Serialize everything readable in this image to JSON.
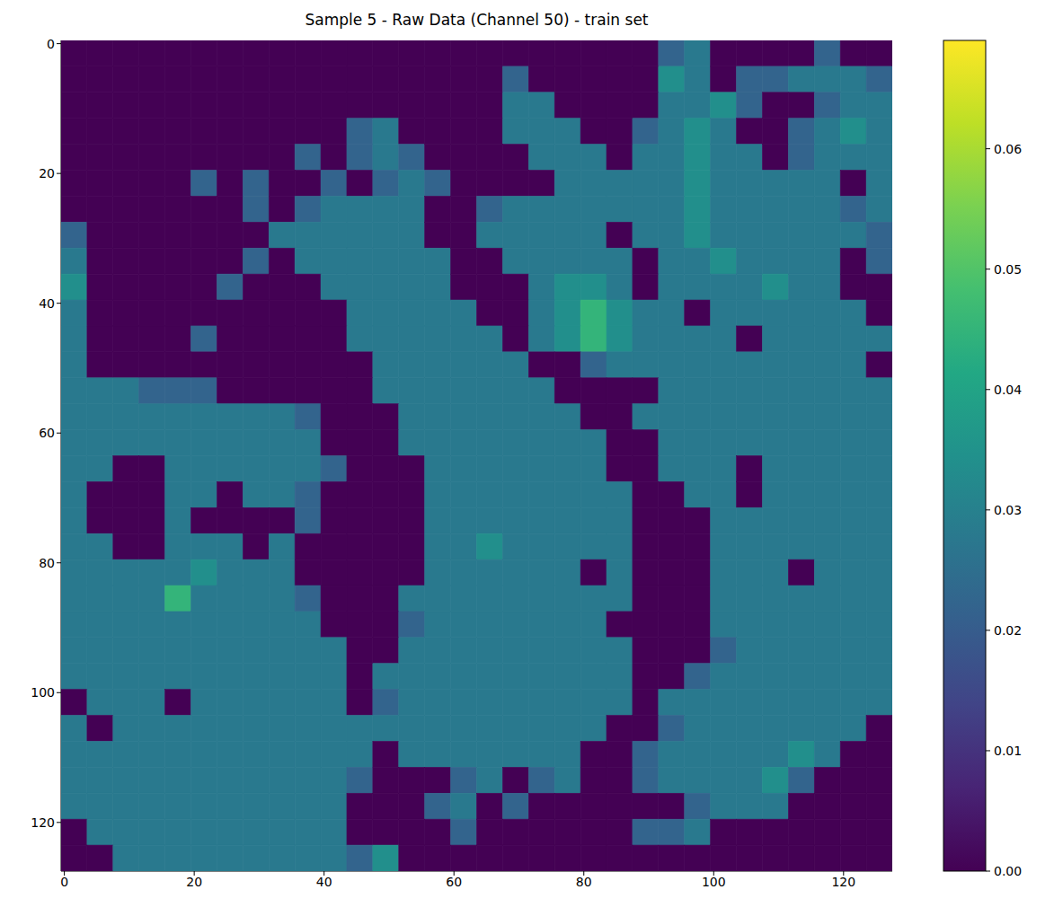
{
  "chart_data": {
    "type": "heatmap",
    "title": "Sample 5 - Raw Data (Channel 50) - train set",
    "xlim": [
      -0.5,
      127.5
    ],
    "ylim": [
      127.5,
      -0.5
    ],
    "xticks": [
      0,
      20,
      40,
      60,
      80,
      100,
      120
    ],
    "yticks": [
      0,
      20,
      40,
      60,
      80,
      100,
      120
    ],
    "cell_x": [
      0,
      4,
      8,
      12,
      16,
      20,
      24,
      28,
      32,
      36,
      40,
      44,
      48,
      52,
      56,
      60,
      64,
      68,
      72,
      76,
      80,
      84,
      88,
      92,
      96,
      100,
      104,
      108,
      112,
      116,
      120,
      124
    ],
    "cell_y": [
      0,
      4,
      8,
      12,
      16,
      20,
      24,
      28,
      32,
      36,
      40,
      44,
      48,
      52,
      56,
      60,
      64,
      68,
      72,
      76,
      80,
      84,
      88,
      92,
      96,
      100,
      104,
      108,
      112,
      116,
      120,
      124
    ],
    "cell_size": 4,
    "cells": [
      [
        0,
        0,
        0,
        0,
        0,
        0,
        0,
        0,
        0,
        0,
        0,
        0,
        0,
        0,
        0,
        0,
        0,
        0,
        0,
        0,
        0,
        0,
        0,
        0.022,
        0.028,
        0,
        0,
        0,
        0,
        0.022,
        0,
        0
      ],
      [
        0,
        0,
        0,
        0,
        0,
        0,
        0,
        0,
        0,
        0,
        0,
        0,
        0,
        0,
        0,
        0,
        0,
        0.022,
        0,
        0,
        0,
        0,
        0,
        0.034,
        0.028,
        0,
        0.022,
        0.022,
        0.028,
        0.028,
        0.028,
        0.022
      ],
      [
        0,
        0,
        0,
        0,
        0,
        0,
        0,
        0,
        0,
        0,
        0,
        0,
        0,
        0,
        0,
        0,
        0,
        0.028,
        0.028,
        0,
        0,
        0,
        0,
        0.028,
        0.028,
        0.034,
        0.022,
        0,
        0,
        0.022,
        0.028,
        0.028
      ],
      [
        0,
        0,
        0,
        0,
        0,
        0,
        0,
        0,
        0,
        0,
        0,
        0.022,
        0.028,
        0,
        0,
        0,
        0,
        0.028,
        0.028,
        0.028,
        0,
        0,
        0.022,
        0.028,
        0.034,
        0.028,
        0,
        0,
        0.022,
        0.028,
        0.034,
        0.028
      ],
      [
        0,
        0,
        0,
        0,
        0,
        0,
        0,
        0,
        0,
        0.022,
        0,
        0.022,
        0.028,
        0.022,
        0,
        0,
        0,
        0,
        0.028,
        0.028,
        0.028,
        0,
        0.028,
        0.028,
        0.034,
        0.028,
        0.028,
        0,
        0.022,
        0.028,
        0.028,
        0.028
      ],
      [
        0,
        0,
        0,
        0,
        0,
        0.022,
        0,
        0.022,
        0,
        0,
        0.022,
        0,
        0.022,
        0.028,
        0.022,
        0,
        0,
        0,
        0,
        0.028,
        0.028,
        0.028,
        0.028,
        0.028,
        0.034,
        0.028,
        0.028,
        0.028,
        0.028,
        0.028,
        0,
        0.028
      ],
      [
        0,
        0,
        0,
        0,
        0,
        0,
        0,
        0.022,
        0,
        0.022,
        0.028,
        0.028,
        0.028,
        0.028,
        0,
        0,
        0.022,
        0.028,
        0.028,
        0.028,
        0.028,
        0.028,
        0.028,
        0.028,
        0.034,
        0.028,
        0.028,
        0.028,
        0.028,
        0.028,
        0.022,
        0.028
      ],
      [
        0.022,
        0,
        0,
        0,
        0,
        0,
        0,
        0,
        0.028,
        0.028,
        0.028,
        0.028,
        0.028,
        0.028,
        0,
        0,
        0.028,
        0.028,
        0.028,
        0.028,
        0.028,
        0,
        0.028,
        0.028,
        0.034,
        0.028,
        0.028,
        0.028,
        0.028,
        0.028,
        0.028,
        0.022
      ],
      [
        0.028,
        0,
        0,
        0,
        0,
        0,
        0,
        0.022,
        0,
        0.028,
        0.028,
        0.028,
        0.028,
        0.028,
        0.028,
        0,
        0,
        0.028,
        0.028,
        0.028,
        0.028,
        0.028,
        0,
        0.028,
        0.028,
        0.034,
        0.028,
        0.028,
        0.028,
        0.028,
        0,
        0.022
      ],
      [
        0.034,
        0,
        0,
        0,
        0,
        0,
        0.022,
        0,
        0,
        0,
        0.028,
        0.028,
        0.028,
        0.028,
        0.028,
        0,
        0,
        0,
        0.028,
        0.034,
        0.034,
        0.028,
        0,
        0.028,
        0.028,
        0.028,
        0.028,
        0.034,
        0.028,
        0.028,
        0,
        0
      ],
      [
        0.028,
        0,
        0,
        0,
        0,
        0,
        0,
        0,
        0,
        0,
        0,
        0.028,
        0.028,
        0.028,
        0.028,
        0.028,
        0,
        0,
        0.028,
        0.034,
        0.045,
        0.034,
        0.028,
        0.028,
        0,
        0.028,
        0.028,
        0.028,
        0.028,
        0.028,
        0.028,
        0
      ],
      [
        0.028,
        0,
        0,
        0,
        0,
        0.022,
        0,
        0,
        0,
        0,
        0,
        0.028,
        0.028,
        0.028,
        0.028,
        0.028,
        0.028,
        0,
        0.028,
        0.034,
        0.045,
        0.034,
        0.028,
        0.028,
        0.028,
        0.028,
        0,
        0.028,
        0.028,
        0.028,
        0.028,
        0.028
      ],
      [
        0.028,
        0,
        0,
        0,
        0,
        0,
        0,
        0,
        0,
        0,
        0,
        0,
        0.028,
        0.028,
        0.028,
        0.028,
        0.028,
        0.028,
        0,
        0,
        0.022,
        0.028,
        0.028,
        0.028,
        0.028,
        0.028,
        0.028,
        0.028,
        0.028,
        0.028,
        0.028,
        0
      ],
      [
        0.028,
        0.028,
        0.028,
        0.022,
        0.022,
        0.022,
        0,
        0,
        0,
        0,
        0,
        0,
        0.028,
        0.028,
        0.028,
        0.028,
        0.028,
        0.028,
        0.028,
        0,
        0,
        0,
        0,
        0.028,
        0.028,
        0.028,
        0.028,
        0.028,
        0.028,
        0.028,
        0.028,
        0.028
      ],
      [
        0.028,
        0.028,
        0.028,
        0.028,
        0.028,
        0.028,
        0.028,
        0.028,
        0.028,
        0.022,
        0,
        0,
        0,
        0.028,
        0.028,
        0.028,
        0.028,
        0.028,
        0.028,
        0.028,
        0,
        0,
        0.028,
        0.028,
        0.028,
        0.028,
        0.028,
        0.028,
        0.028,
        0.028,
        0.028,
        0.028
      ],
      [
        0.028,
        0.028,
        0.028,
        0.028,
        0.028,
        0.028,
        0.028,
        0.028,
        0.028,
        0.028,
        0,
        0,
        0,
        0.028,
        0.028,
        0.028,
        0.028,
        0.028,
        0.028,
        0.028,
        0.028,
        0,
        0,
        0.028,
        0.028,
        0.028,
        0.028,
        0.028,
        0.028,
        0.028,
        0.028,
        0.028
      ],
      [
        0.028,
        0.028,
        0,
        0,
        0.028,
        0.028,
        0.028,
        0.028,
        0.028,
        0.028,
        0.022,
        0,
        0,
        0,
        0.028,
        0.028,
        0.028,
        0.028,
        0.028,
        0.028,
        0.028,
        0,
        0,
        0.028,
        0.028,
        0.028,
        0,
        0.028,
        0.028,
        0.028,
        0.028,
        0.028
      ],
      [
        0.028,
        0,
        0,
        0,
        0.028,
        0.028,
        0,
        0.028,
        0.028,
        0.022,
        0,
        0,
        0,
        0,
        0.028,
        0.028,
        0.028,
        0.028,
        0.028,
        0.028,
        0.028,
        0.028,
        0,
        0,
        0.028,
        0.028,
        0,
        0.028,
        0.028,
        0.028,
        0.028,
        0.028
      ],
      [
        0.028,
        0,
        0,
        0,
        0.028,
        0,
        0,
        0,
        0,
        0.022,
        0,
        0,
        0,
        0,
        0.028,
        0.028,
        0.028,
        0.028,
        0.028,
        0.028,
        0.028,
        0.028,
        0,
        0,
        0,
        0.028,
        0.028,
        0.028,
        0.028,
        0.028,
        0.028,
        0.028
      ],
      [
        0.028,
        0.028,
        0,
        0,
        0.028,
        0.028,
        0.028,
        0,
        0.028,
        0,
        0,
        0,
        0,
        0,
        0.028,
        0.028,
        0.034,
        0.028,
        0.028,
        0.028,
        0.028,
        0.028,
        0,
        0,
        0,
        0.028,
        0.028,
        0.028,
        0.028,
        0.028,
        0.028,
        0.028
      ],
      [
        0.028,
        0.028,
        0.028,
        0.028,
        0.028,
        0.034,
        0.028,
        0.028,
        0.028,
        0,
        0,
        0,
        0,
        0,
        0.028,
        0.028,
        0.028,
        0.028,
        0.028,
        0.028,
        0,
        0.028,
        0,
        0,
        0,
        0.028,
        0.028,
        0.028,
        0,
        0.028,
        0.028,
        0.028
      ],
      [
        0.028,
        0.028,
        0.028,
        0.028,
        0.045,
        0.028,
        0.028,
        0.028,
        0.028,
        0.022,
        0,
        0,
        0,
        0.028,
        0.028,
        0.028,
        0.028,
        0.028,
        0.028,
        0.028,
        0.028,
        0.028,
        0,
        0,
        0,
        0.028,
        0.028,
        0.028,
        0.028,
        0.028,
        0.028,
        0.028
      ],
      [
        0.028,
        0.028,
        0.028,
        0.028,
        0.028,
        0.028,
        0.028,
        0.028,
        0.028,
        0.028,
        0,
        0,
        0,
        0.022,
        0.028,
        0.028,
        0.028,
        0.028,
        0.028,
        0.028,
        0.028,
        0,
        0,
        0,
        0,
        0.028,
        0.028,
        0.028,
        0.028,
        0.028,
        0.028,
        0.028
      ],
      [
        0.028,
        0.028,
        0.028,
        0.028,
        0.028,
        0.028,
        0.028,
        0.028,
        0.028,
        0.028,
        0.028,
        0,
        0,
        0.028,
        0.028,
        0.028,
        0.028,
        0.028,
        0.028,
        0.028,
        0.028,
        0.028,
        0,
        0,
        0,
        0.022,
        0.028,
        0.028,
        0.028,
        0.028,
        0.028,
        0.028
      ],
      [
        0.028,
        0.028,
        0.028,
        0.028,
        0.028,
        0.028,
        0.028,
        0.028,
        0.028,
        0.028,
        0.028,
        0,
        0.028,
        0.028,
        0.028,
        0.028,
        0.028,
        0.028,
        0.028,
        0.028,
        0.028,
        0.028,
        0,
        0,
        0.022,
        0.028,
        0.028,
        0.028,
        0.028,
        0.028,
        0.028,
        0.028
      ],
      [
        0,
        0.028,
        0.028,
        0.028,
        0,
        0.028,
        0.028,
        0.028,
        0.028,
        0.028,
        0.028,
        0,
        0.022,
        0.028,
        0.028,
        0.028,
        0.028,
        0.028,
        0.028,
        0.028,
        0.028,
        0.028,
        0,
        0.028,
        0.028,
        0.028,
        0.028,
        0.028,
        0.028,
        0.028,
        0.028,
        0.028
      ],
      [
        0.028,
        0,
        0.028,
        0.028,
        0.028,
        0.028,
        0.028,
        0.028,
        0.028,
        0.028,
        0.028,
        0.028,
        0.028,
        0.028,
        0.028,
        0.028,
        0.028,
        0.028,
        0.028,
        0.028,
        0.028,
        0,
        0,
        0.022,
        0.028,
        0.028,
        0.028,
        0.028,
        0.028,
        0.028,
        0.028,
        0
      ],
      [
        0.028,
        0.028,
        0.028,
        0.028,
        0.028,
        0.028,
        0.028,
        0.028,
        0.028,
        0.028,
        0.028,
        0.028,
        0,
        0.028,
        0.028,
        0.028,
        0.028,
        0.028,
        0.028,
        0.028,
        0,
        0,
        0.022,
        0.028,
        0.028,
        0.028,
        0.028,
        0.028,
        0.034,
        0.028,
        0,
        0
      ],
      [
        0.028,
        0.028,
        0.028,
        0.028,
        0.028,
        0.028,
        0.028,
        0.028,
        0.028,
        0.028,
        0.028,
        0.022,
        0,
        0,
        0,
        0.022,
        0.028,
        0,
        0.022,
        0.028,
        0,
        0,
        0.022,
        0.028,
        0.028,
        0.028,
        0.028,
        0.034,
        0.022,
        0,
        0,
        0
      ],
      [
        0.028,
        0.028,
        0.028,
        0.028,
        0.028,
        0.028,
        0.028,
        0.028,
        0.028,
        0.028,
        0.028,
        0,
        0,
        0,
        0.022,
        0.028,
        0,
        0.022,
        0,
        0,
        0,
        0,
        0,
        0,
        0.022,
        0.028,
        0.028,
        0.028,
        0,
        0,
        0,
        0
      ],
      [
        0,
        0.028,
        0.028,
        0.028,
        0.028,
        0.028,
        0.028,
        0.028,
        0.028,
        0.028,
        0.028,
        0,
        0,
        0,
        0,
        0.022,
        0,
        0,
        0,
        0,
        0,
        0,
        0.022,
        0.022,
        0.028,
        0,
        0,
        0,
        0,
        0,
        0,
        0
      ],
      [
        0,
        0,
        0.028,
        0.028,
        0.028,
        0.028,
        0.028,
        0.028,
        0.028,
        0.028,
        0.028,
        0.022,
        0.034,
        0,
        0,
        0,
        0,
        0,
        0,
        0,
        0,
        0,
        0,
        0,
        0,
        0,
        0,
        0,
        0,
        0,
        0,
        0
      ]
    ],
    "colorbar_range": [
      0,
      0.069
    ],
    "colorbar_ticks": [
      {
        "value": 0,
        "label": "0.00"
      },
      {
        "value": 0.01,
        "label": "0.01"
      },
      {
        "value": 0.02,
        "label": "0.02"
      },
      {
        "value": 0.03,
        "label": "0.03"
      },
      {
        "value": 0.04,
        "label": "0.04"
      },
      {
        "value": 0.05,
        "label": "0.05"
      },
      {
        "value": 0.06,
        "label": "0.06"
      }
    ]
  }
}
